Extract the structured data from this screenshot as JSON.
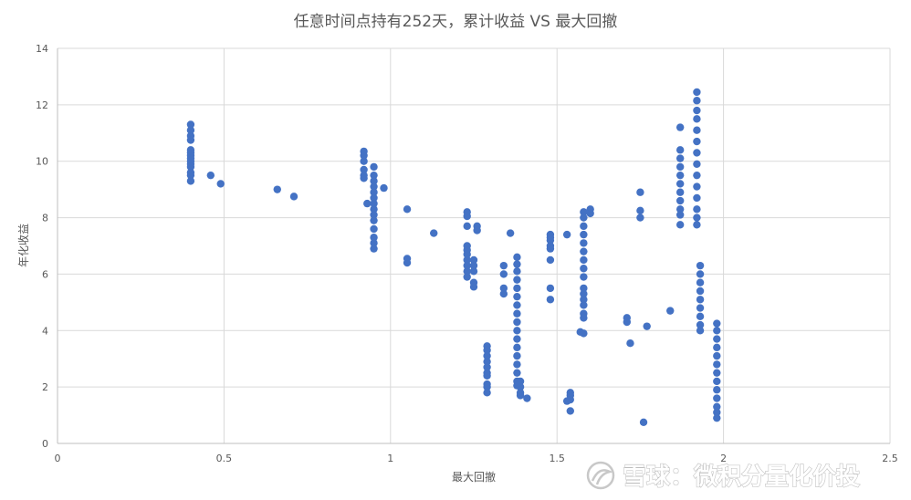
{
  "chart_data": {
    "type": "scatter",
    "title": "任意时间点持有252天，累计收益 VS 最大回撤",
    "xlabel": "最大回撤",
    "ylabel": "年化收益",
    "xlim": [
      0,
      2.5
    ],
    "ylim": [
      0,
      14
    ],
    "xticks": [
      0,
      0.5,
      1,
      1.5,
      2,
      2.5
    ],
    "xtick_labels": [
      "0",
      "0.5",
      "1",
      "1.5",
      "2",
      "2.5"
    ],
    "yticks": [
      0,
      2,
      4,
      6,
      8,
      10,
      12,
      14
    ],
    "ytick_labels": [
      "0",
      "2",
      "4",
      "6",
      "8",
      "10",
      "12",
      "14"
    ],
    "grid": true,
    "legend": "none",
    "color": "#4472c4",
    "series": [
      {
        "points": [
          [
            0.4,
            11.3
          ],
          [
            0.4,
            11.1
          ],
          [
            0.4,
            10.9
          ],
          [
            0.4,
            10.75
          ],
          [
            0.4,
            10.4
          ],
          [
            0.4,
            10.2
          ],
          [
            0.4,
            10.0
          ],
          [
            0.4,
            9.8
          ],
          [
            0.4,
            9.6
          ],
          [
            0.4,
            9.5
          ],
          [
            0.4,
            9.3
          ],
          [
            0.4,
            10.3
          ],
          [
            0.4,
            9.9
          ],
          [
            0.4,
            10.1
          ],
          [
            0.46,
            9.5
          ],
          [
            0.49,
            9.2
          ],
          [
            0.66,
            9.0
          ],
          [
            0.71,
            8.75
          ],
          [
            0.92,
            10.35
          ],
          [
            0.92,
            10.2
          ],
          [
            0.92,
            10.0
          ],
          [
            0.92,
            9.7
          ],
          [
            0.92,
            9.5
          ],
          [
            0.92,
            9.4
          ],
          [
            0.95,
            9.8
          ],
          [
            0.95,
            9.5
          ],
          [
            0.95,
            9.3
          ],
          [
            0.95,
            9.1
          ],
          [
            0.95,
            8.9
          ],
          [
            0.95,
            8.7
          ],
          [
            0.95,
            8.5
          ],
          [
            0.95,
            8.3
          ],
          [
            0.95,
            8.1
          ],
          [
            0.95,
            7.9
          ],
          [
            0.95,
            7.6
          ],
          [
            0.95,
            7.3
          ],
          [
            0.95,
            7.1
          ],
          [
            0.95,
            6.9
          ],
          [
            0.93,
            8.5
          ],
          [
            0.98,
            9.05
          ],
          [
            1.05,
            8.3
          ],
          [
            1.05,
            6.55
          ],
          [
            1.05,
            6.4
          ],
          [
            1.13,
            7.45
          ],
          [
            1.23,
            8.2
          ],
          [
            1.23,
            8.05
          ],
          [
            1.23,
            7.7
          ],
          [
            1.23,
            7.0
          ],
          [
            1.23,
            6.85
          ],
          [
            1.23,
            6.7
          ],
          [
            1.23,
            6.5
          ],
          [
            1.23,
            6.3
          ],
          [
            1.23,
            6.1
          ],
          [
            1.23,
            5.9
          ],
          [
            1.25,
            6.5
          ],
          [
            1.25,
            6.3
          ],
          [
            1.25,
            6.1
          ],
          [
            1.25,
            5.7
          ],
          [
            1.25,
            5.55
          ],
          [
            1.26,
            7.7
          ],
          [
            1.26,
            7.55
          ],
          [
            1.29,
            3.45
          ],
          [
            1.29,
            3.3
          ],
          [
            1.29,
            3.1
          ],
          [
            1.29,
            2.9
          ],
          [
            1.29,
            2.7
          ],
          [
            1.29,
            2.5
          ],
          [
            1.29,
            2.4
          ],
          [
            1.29,
            2.1
          ],
          [
            1.29,
            2.0
          ],
          [
            1.29,
            1.8
          ],
          [
            1.34,
            6.3
          ],
          [
            1.34,
            6.0
          ],
          [
            1.34,
            5.5
          ],
          [
            1.34,
            5.3
          ],
          [
            1.36,
            7.45
          ],
          [
            1.38,
            6.6
          ],
          [
            1.38,
            6.35
          ],
          [
            1.38,
            6.1
          ],
          [
            1.38,
            5.8
          ],
          [
            1.38,
            5.5
          ],
          [
            1.38,
            5.2
          ],
          [
            1.38,
            4.9
          ],
          [
            1.38,
            4.6
          ],
          [
            1.38,
            4.3
          ],
          [
            1.38,
            4.0
          ],
          [
            1.38,
            3.7
          ],
          [
            1.38,
            3.4
          ],
          [
            1.38,
            3.1
          ],
          [
            1.38,
            2.8
          ],
          [
            1.38,
            2.5
          ],
          [
            1.38,
            2.2
          ],
          [
            1.38,
            2.05
          ],
          [
            1.39,
            2.2
          ],
          [
            1.39,
            2.0
          ],
          [
            1.39,
            1.8
          ],
          [
            1.39,
            1.7
          ],
          [
            1.41,
            1.6
          ],
          [
            1.48,
            7.4
          ],
          [
            1.48,
            7.3
          ],
          [
            1.48,
            7.2
          ],
          [
            1.48,
            7.0
          ],
          [
            1.48,
            6.9
          ],
          [
            1.48,
            6.5
          ],
          [
            1.48,
            5.5
          ],
          [
            1.48,
            5.1
          ],
          [
            1.53,
            7.4
          ],
          [
            1.53,
            1.5
          ],
          [
            1.54,
            1.8
          ],
          [
            1.54,
            1.7
          ],
          [
            1.54,
            1.55
          ],
          [
            1.54,
            1.15
          ],
          [
            1.57,
            3.95
          ],
          [
            1.58,
            8.2
          ],
          [
            1.58,
            8.0
          ],
          [
            1.58,
            7.7
          ],
          [
            1.58,
            7.4
          ],
          [
            1.58,
            7.1
          ],
          [
            1.58,
            6.8
          ],
          [
            1.58,
            6.5
          ],
          [
            1.58,
            6.2
          ],
          [
            1.58,
            5.9
          ],
          [
            1.58,
            5.5
          ],
          [
            1.58,
            5.3
          ],
          [
            1.58,
            5.1
          ],
          [
            1.58,
            4.9
          ],
          [
            1.58,
            4.6
          ],
          [
            1.58,
            4.45
          ],
          [
            1.58,
            3.9
          ],
          [
            1.6,
            8.3
          ],
          [
            1.6,
            8.15
          ],
          [
            1.71,
            4.45
          ],
          [
            1.71,
            4.3
          ],
          [
            1.72,
            3.55
          ],
          [
            1.75,
            8.9
          ],
          [
            1.75,
            8.25
          ],
          [
            1.75,
            8.0
          ],
          [
            1.76,
            0.75
          ],
          [
            1.77,
            4.15
          ],
          [
            1.84,
            4.7
          ],
          [
            1.87,
            11.2
          ],
          [
            1.87,
            10.4
          ],
          [
            1.87,
            10.1
          ],
          [
            1.87,
            9.8
          ],
          [
            1.87,
            9.5
          ],
          [
            1.87,
            9.2
          ],
          [
            1.87,
            8.9
          ],
          [
            1.87,
            8.6
          ],
          [
            1.87,
            8.3
          ],
          [
            1.87,
            8.1
          ],
          [
            1.87,
            7.75
          ],
          [
            1.92,
            12.45
          ],
          [
            1.92,
            12.15
          ],
          [
            1.92,
            11.8
          ],
          [
            1.92,
            11.5
          ],
          [
            1.92,
            11.1
          ],
          [
            1.92,
            10.7
          ],
          [
            1.92,
            10.3
          ],
          [
            1.92,
            9.9
          ],
          [
            1.92,
            9.5
          ],
          [
            1.92,
            9.1
          ],
          [
            1.92,
            8.7
          ],
          [
            1.92,
            8.3
          ],
          [
            1.92,
            8.0
          ],
          [
            1.92,
            7.75
          ],
          [
            1.93,
            6.3
          ],
          [
            1.93,
            6.0
          ],
          [
            1.93,
            5.7
          ],
          [
            1.93,
            5.4
          ],
          [
            1.93,
            5.1
          ],
          [
            1.93,
            4.8
          ],
          [
            1.93,
            4.5
          ],
          [
            1.93,
            4.2
          ],
          [
            1.93,
            4.0
          ],
          [
            1.98,
            4.25
          ],
          [
            1.98,
            4.0
          ],
          [
            1.98,
            3.7
          ],
          [
            1.98,
            3.4
          ],
          [
            1.98,
            3.1
          ],
          [
            1.98,
            2.8
          ],
          [
            1.98,
            2.5
          ],
          [
            1.98,
            2.2
          ],
          [
            1.98,
            1.9
          ],
          [
            1.98,
            1.6
          ],
          [
            1.98,
            1.3
          ],
          [
            1.98,
            1.1
          ],
          [
            1.98,
            0.9
          ]
        ]
      }
    ]
  },
  "watermark": {
    "text": "雪球：微积分量化价投"
  }
}
